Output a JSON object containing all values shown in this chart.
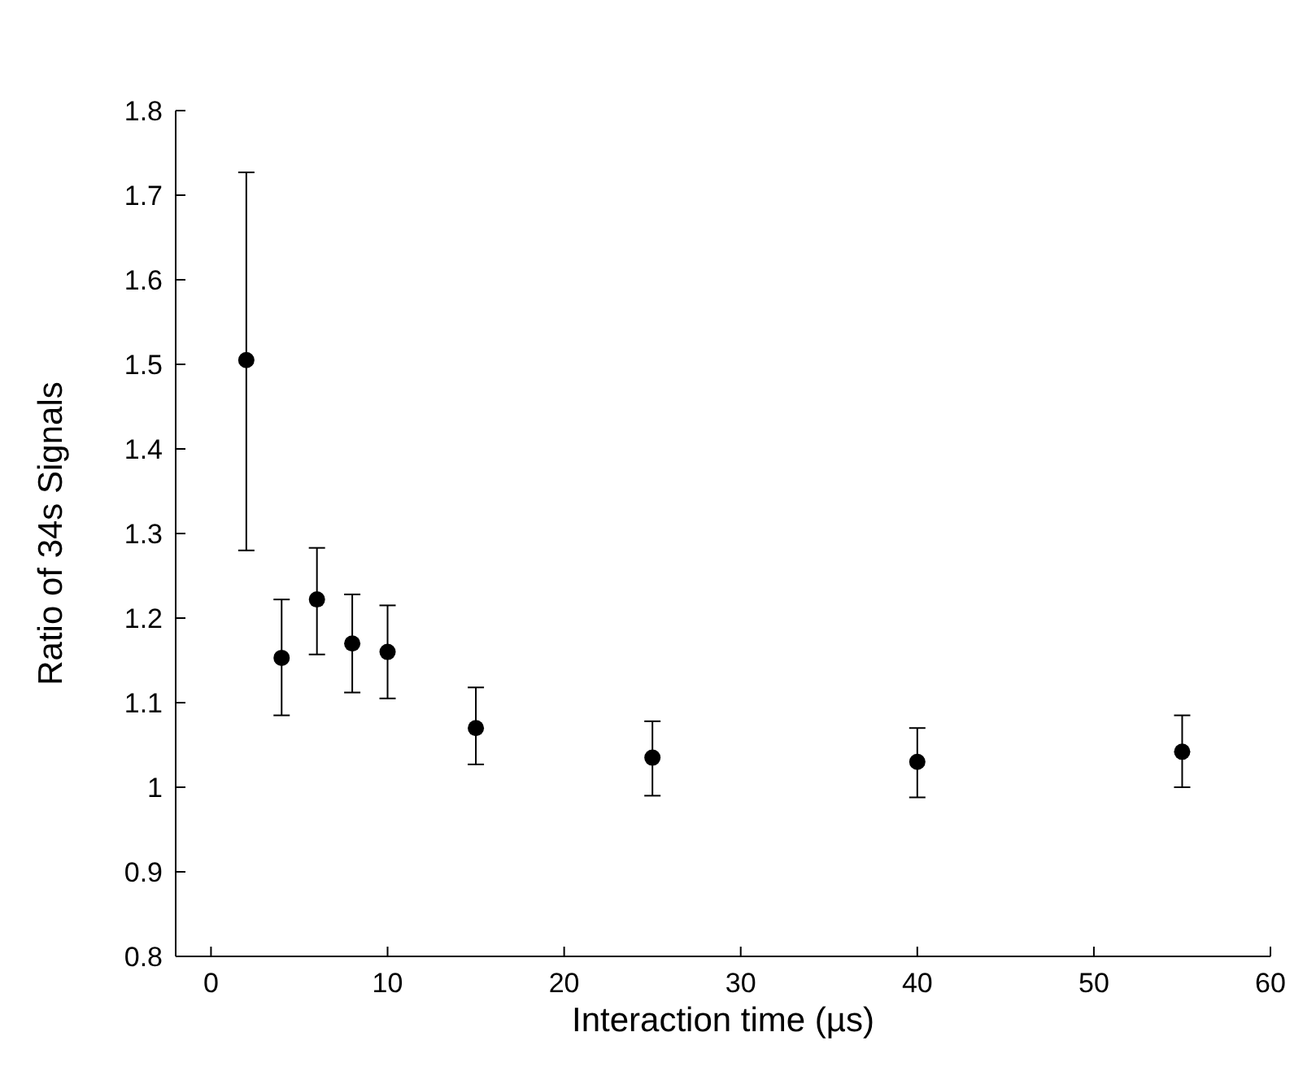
{
  "chart_data": {
    "type": "scatter",
    "xlabel": "Interaction time (µs)",
    "ylabel": "Ratio of 34s Signals",
    "x": [
      2,
      4,
      6,
      8,
      10,
      15,
      25,
      40,
      55
    ],
    "values": [
      1.505,
      1.153,
      1.222,
      1.17,
      1.16,
      1.07,
      1.035,
      1.03,
      1.042
    ],
    "errors": [
      [
        1.28,
        1.727
      ],
      [
        1.085,
        1.222
      ],
      [
        1.157,
        1.283
      ],
      [
        1.112,
        1.228
      ],
      [
        1.105,
        1.215
      ],
      [
        1.027,
        1.118
      ],
      [
        0.99,
        1.078
      ],
      [
        0.988,
        1.07
      ],
      [
        1.0,
        1.085
      ]
    ],
    "color": "#000000",
    "marker": "circle",
    "xlim": [
      -2,
      60
    ],
    "xticks": [
      0,
      10,
      20,
      30,
      40,
      50,
      60
    ],
    "ylim": [
      0.8,
      1.8
    ],
    "yticks": [
      0.8,
      0.9,
      1,
      1.1,
      1.2,
      1.3,
      1.4,
      1.5,
      1.6,
      1.7,
      1.8
    ],
    "grid": false
  }
}
